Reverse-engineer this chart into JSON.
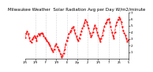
{
  "title": "Milwaukee Weather  Solar Radiation Avg per Day W/m2/minute",
  "title_fontsize": 4.0,
  "line_color": "#ff0000",
  "line_style": "--",
  "line_width": 0.6,
  "marker": "s",
  "marker_size": 1.0,
  "background_color": "#ffffff",
  "grid_color": "#b0b0b0",
  "grid_style": ":",
  "ylim": [
    0,
    7
  ],
  "yticks": [
    1,
    2,
    3,
    4,
    5,
    6,
    7
  ],
  "ytick_labels": [
    "1",
    "2",
    "3",
    "4",
    "5",
    "6",
    "7"
  ],
  "x_values": [
    0,
    1,
    2,
    3,
    4,
    5,
    6,
    7,
    8,
    9,
    10,
    11,
    12,
    13,
    14,
    15,
    16,
    17,
    18,
    19,
    20,
    21,
    22,
    23,
    24,
    25,
    26,
    27,
    28,
    29,
    30,
    31,
    32,
    33,
    34,
    35,
    36,
    37,
    38,
    39,
    40,
    41,
    42,
    43,
    44,
    45,
    46,
    47,
    48,
    49,
    50,
    51,
    52,
    53,
    54,
    55,
    56,
    57,
    58,
    59,
    60,
    61,
    62,
    63,
    64,
    65,
    66,
    67,
    68,
    69,
    70,
    71,
    72,
    73,
    74,
    75,
    76,
    77,
    78,
    79,
    80,
    81,
    82,
    83,
    84,
    85,
    86,
    87,
    88,
    89,
    90,
    91,
    92,
    93,
    94,
    95,
    96,
    97,
    98,
    99
  ],
  "y_values": [
    3.2,
    3.8,
    4.2,
    3.8,
    3.2,
    2.8,
    2.5,
    3.0,
    3.2,
    3.5,
    3.2,
    2.8,
    3.5,
    3.8,
    3.6,
    3.8,
    3.9,
    3.8,
    3.5,
    3.2,
    3.0,
    2.8,
    2.5,
    2.3,
    2.0,
    1.6,
    1.3,
    1.1,
    1.5,
    2.0,
    2.3,
    1.8,
    1.5,
    1.2,
    0.7,
    0.3,
    0.5,
    0.9,
    1.5,
    2.2,
    2.8,
    3.2,
    3.8,
    4.0,
    4.3,
    4.6,
    4.9,
    4.4,
    3.9,
    3.4,
    3.0,
    2.7,
    3.1,
    3.7,
    4.2,
    4.6,
    5.0,
    5.5,
    5.9,
    5.6,
    5.1,
    4.6,
    3.9,
    3.3,
    3.6,
    4.1,
    4.6,
    5.1,
    4.6,
    4.1,
    3.6,
    3.1,
    2.6,
    3.1,
    3.6,
    4.3,
    4.9,
    5.3,
    5.6,
    5.9,
    6.1,
    5.6,
    4.9,
    4.1,
    3.6,
    3.1,
    4.1,
    5.1,
    5.6,
    5.9,
    6.3,
    6.1,
    5.6,
    4.9,
    4.3,
    3.9,
    3.6,
    3.1,
    2.6,
    2.9
  ],
  "vgrid_positions": [
    10,
    20,
    30,
    40,
    50,
    60,
    70,
    80,
    90
  ],
  "xtick_positions": [
    0,
    10,
    20,
    30,
    40,
    50,
    60,
    70,
    80,
    90,
    99
  ],
  "xtick_labels": [
    "1/5",
    "1/9",
    "F",
    "1/9",
    "E",
    "1/p",
    "2",
    "1/5",
    "7",
    "25",
    "5"
  ]
}
